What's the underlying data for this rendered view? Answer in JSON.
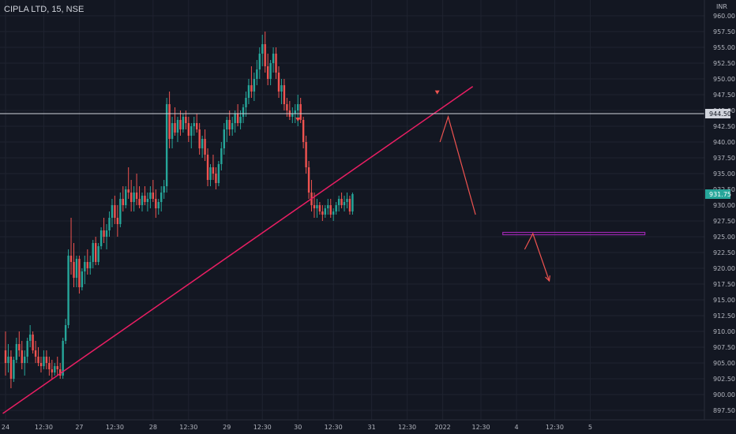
{
  "header": {
    "title": "CIPLA LTD, 15, NSE"
  },
  "colors": {
    "background": "#131722",
    "grid": "#1f2330",
    "up": "#26a69a",
    "down": "#ef5350",
    "trendline": "#e91e63",
    "hline": "#d1d4dc",
    "support": "#9c27b0",
    "price_tag": "#26a69a"
  },
  "chart_data": {
    "type": "candlestick",
    "currency": "INR",
    "y_range": [
      896,
      962.5
    ],
    "y_ticks": [
      "960.00",
      "957.50",
      "955.00",
      "952.50",
      "950.00",
      "947.50",
      "945.00",
      "942.50",
      "940.00",
      "937.50",
      "935.00",
      "932.50",
      "930.00",
      "927.50",
      "925.00",
      "922.50",
      "920.00",
      "917.50",
      "915.00",
      "912.50",
      "910.00",
      "907.50",
      "905.00",
      "902.50",
      "900.00",
      "897.50"
    ],
    "x_ticks": [
      {
        "label": "24",
        "i": 0
      },
      {
        "label": "12:30",
        "i": 14
      },
      {
        "label": "27",
        "i": 27
      },
      {
        "label": "12:30",
        "i": 40
      },
      {
        "label": "28",
        "i": 54
      },
      {
        "label": "12:30",
        "i": 67
      },
      {
        "label": "29",
        "i": 81
      },
      {
        "label": "12:30",
        "i": 94
      },
      {
        "label": "30",
        "i": 107
      },
      {
        "label": "12:30",
        "i": 120
      },
      {
        "label": "31",
        "i": 134
      },
      {
        "label": "12:30",
        "i": 147
      },
      {
        "label": "2022",
        "i": 160
      },
      {
        "label": "12:30",
        "i": 174
      },
      {
        "label": "4",
        "i": 187
      },
      {
        "label": "12:30",
        "i": 201
      },
      {
        "label": "5",
        "i": 214
      }
    ],
    "ohlc": [
      [
        907,
        910,
        903,
        905
      ],
      [
        905,
        908,
        903.5,
        906
      ],
      [
        906,
        907,
        901,
        902.5
      ],
      [
        902.5,
        906,
        902,
        905.5
      ],
      [
        905.5,
        909,
        905,
        908
      ],
      [
        908,
        910,
        906,
        907
      ],
      [
        907,
        908.5,
        904,
        905
      ],
      [
        905,
        907,
        903,
        906
      ],
      [
        906,
        909,
        905,
        908.5
      ],
      [
        908.5,
        911,
        907.5,
        909.5
      ],
      [
        909.5,
        910,
        906.5,
        907
      ],
      [
        907,
        908.5,
        905,
        906
      ],
      [
        906,
        907.5,
        904.5,
        905
      ],
      [
        905,
        906,
        903.5,
        904.5
      ],
      [
        904.5,
        907,
        904,
        906
      ],
      [
        906,
        907,
        904,
        905
      ],
      [
        905,
        906,
        903,
        904
      ],
      [
        904,
        905.5,
        902.5,
        903.5
      ],
      [
        903.5,
        905,
        903,
        904.5
      ],
      [
        904.5,
        906,
        903,
        904
      ],
      [
        904,
        905,
        902.5,
        903
      ],
      [
        903,
        909,
        902.5,
        908.5
      ],
      [
        908.5,
        912,
        908,
        911
      ],
      [
        911,
        923,
        910.5,
        922
      ],
      [
        922,
        928,
        919,
        921
      ],
      [
        921,
        924,
        917,
        918.5
      ],
      [
        918.5,
        922,
        917,
        921.5
      ],
      [
        921.5,
        922,
        916,
        917
      ],
      [
        917,
        920,
        916.5,
        919.5
      ],
      [
        919.5,
        922,
        917.5,
        921
      ],
      [
        921,
        923,
        919,
        920
      ],
      [
        920,
        922,
        919,
        921
      ],
      [
        921,
        924.5,
        920,
        924
      ],
      [
        924,
        925,
        920.5,
        921
      ],
      [
        921,
        924,
        920.5,
        923.5
      ],
      [
        923.5,
        926.5,
        923,
        926
      ],
      [
        926,
        928,
        924,
        925
      ],
      [
        925,
        927,
        923,
        926
      ],
      [
        926,
        929,
        925,
        928
      ],
      [
        928,
        931,
        926.5,
        930
      ],
      [
        930,
        931.5,
        927,
        928
      ],
      [
        928,
        930,
        925,
        927
      ],
      [
        927,
        932,
        926.5,
        931
      ],
      [
        931,
        933,
        929,
        930
      ],
      [
        930,
        933,
        929.5,
        932.5
      ],
      [
        932.5,
        936,
        931,
        932
      ],
      [
        932,
        934,
        929,
        930.5
      ],
      [
        930.5,
        933,
        929,
        932
      ],
      [
        932,
        935,
        930,
        931
      ],
      [
        931,
        933,
        929.5,
        930
      ],
      [
        930,
        932,
        929,
        931.5
      ],
      [
        931.5,
        933,
        930,
        930.5
      ],
      [
        930.5,
        932,
        929,
        931
      ],
      [
        931,
        933,
        929.5,
        932
      ],
      [
        932,
        934,
        930.5,
        931
      ],
      [
        931,
        932.5,
        928,
        929.5
      ],
      [
        929.5,
        931,
        928.5,
        930.5
      ],
      [
        930.5,
        933,
        929,
        932
      ],
      [
        932,
        934,
        931,
        933
      ],
      [
        933,
        947,
        932,
        946
      ],
      [
        946,
        948,
        939,
        940.5
      ],
      [
        940.5,
        944,
        939,
        943
      ],
      [
        943,
        945.5,
        941,
        941.5
      ],
      [
        941.5,
        944,
        940,
        943.5
      ],
      [
        943.5,
        945,
        941,
        942
      ],
      [
        942,
        944.5,
        941.5,
        944
      ],
      [
        944,
        945,
        942,
        943
      ],
      [
        943,
        944,
        940,
        941
      ],
      [
        941,
        943,
        939,
        942.5
      ],
      [
        942.5,
        944,
        941,
        943
      ],
      [
        943,
        944.5,
        941.5,
        942
      ],
      [
        942,
        943,
        938,
        939
      ],
      [
        939,
        941,
        937.5,
        940.5
      ],
      [
        940.5,
        942,
        937,
        938
      ],
      [
        938,
        939,
        933,
        934
      ],
      [
        934,
        936.5,
        933,
        936
      ],
      [
        936,
        938,
        934,
        935
      ],
      [
        935,
        936,
        932.5,
        933.5
      ],
      [
        933.5,
        937,
        933,
        936.5
      ],
      [
        936.5,
        940,
        935.5,
        939
      ],
      [
        939,
        943,
        938,
        942
      ],
      [
        942,
        944,
        940,
        943.5
      ],
      [
        943.5,
        945,
        941,
        942
      ],
      [
        942,
        944,
        941,
        943
      ],
      [
        943,
        945,
        941.5,
        944.5
      ],
      [
        944.5,
        946,
        942.5,
        943
      ],
      [
        943,
        945,
        942,
        944
      ],
      [
        944,
        946,
        943,
        945.5
      ],
      [
        945.5,
        948,
        944,
        947
      ],
      [
        947,
        950,
        946,
        949
      ],
      [
        949,
        952,
        947,
        948
      ],
      [
        948,
        951,
        946.5,
        950
      ],
      [
        950,
        953,
        949,
        951.5
      ],
      [
        951.5,
        955,
        950,
        954
      ],
      [
        954,
        957,
        952,
        955.5
      ],
      [
        955.5,
        957.5,
        951,
        952
      ],
      [
        952,
        954,
        949,
        950
      ],
      [
        950,
        953,
        949,
        952.5
      ],
      [
        952.5,
        955,
        951,
        954
      ],
      [
        954,
        955,
        950,
        951
      ],
      [
        951,
        952,
        947,
        948
      ],
      [
        948,
        950,
        946,
        949
      ],
      [
        949,
        950,
        945,
        946
      ],
      [
        946,
        947,
        944,
        945
      ],
      [
        945,
        946.5,
        943.5,
        944
      ],
      [
        944,
        945.5,
        943,
        944.5
      ],
      [
        944.5,
        946,
        943,
        945
      ],
      [
        945,
        947.5,
        942.5,
        946
      ],
      [
        946,
        947,
        943,
        943.5
      ],
      [
        943.5,
        944,
        939,
        940
      ],
      [
        940,
        941,
        935,
        936
      ],
      [
        936,
        937,
        931,
        932
      ],
      [
        932,
        934,
        929,
        930
      ],
      [
        930,
        932,
        928,
        929.5
      ],
      [
        929.5,
        931,
        928,
        930
      ],
      [
        930,
        930.5,
        928.5,
        929
      ],
      [
        929,
        930,
        927.5,
        928.5
      ],
      [
        928.5,
        930,
        928,
        929.5
      ],
      [
        929.5,
        931,
        928.5,
        930
      ],
      [
        930,
        931,
        928,
        928.5
      ],
      [
        928.5,
        929.5,
        927.5,
        929
      ],
      [
        929,
        930.5,
        928.5,
        930
      ],
      [
        930,
        931.5,
        929,
        931
      ],
      [
        931,
        932,
        929.5,
        930
      ],
      [
        930,
        931.5,
        929,
        930.5
      ],
      [
        930.5,
        932,
        929.5,
        931
      ],
      [
        931,
        931.5,
        928.5,
        929
      ],
      [
        929,
        932,
        928.5,
        931.75
      ]
    ],
    "current_price": "931.75",
    "horizontal_line": {
      "price": 944.5,
      "label": "944.50"
    },
    "support_zone": {
      "price": 925.5
    },
    "trendlines": [
      {
        "from": {
          "i": -1,
          "p": 897
        },
        "to": {
          "i": 171,
          "p": 948.8
        }
      }
    ],
    "annotations": {
      "triangle_markers": [
        {
          "i": 107,
          "p": 943.5
        },
        {
          "i": 158,
          "p": 947.8
        }
      ],
      "projected_path": [
        {
          "i": 159,
          "p": 940
        },
        {
          "i": 162,
          "p": 944
        },
        {
          "i": 172,
          "p": 928.5
        }
      ],
      "forecast_arrow": [
        {
          "i": 190,
          "p": 923
        },
        {
          "i": 193,
          "p": 925.5
        },
        {
          "i": 199,
          "p": 918
        }
      ]
    }
  }
}
